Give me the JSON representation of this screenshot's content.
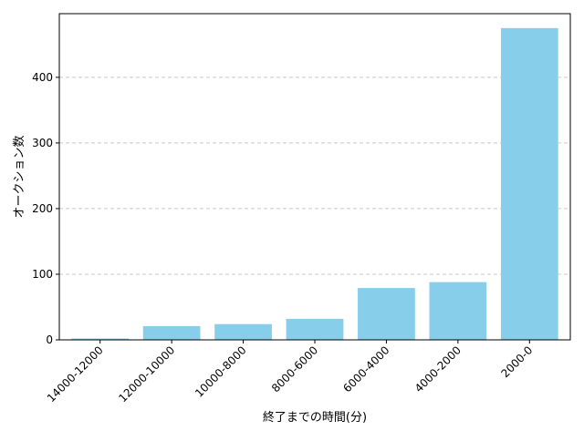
{
  "chart_data": {
    "type": "bar",
    "xlabel": "終了までの時間(分)",
    "ylabel": "オークション数",
    "categories": [
      "14000-12000",
      "12000-10000",
      "10000-8000",
      "8000-6000",
      "6000-4000",
      "4000-2000",
      "2000-0"
    ],
    "values": [
      2,
      21,
      24,
      32,
      79,
      88,
      475
    ],
    "ylim": [
      0,
      497
    ],
    "yticks": [
      0,
      100,
      200,
      300,
      400
    ],
    "grid": "y-dashed",
    "bar_color": "#87CEEB",
    "grid_color": "#c8c8c8"
  }
}
